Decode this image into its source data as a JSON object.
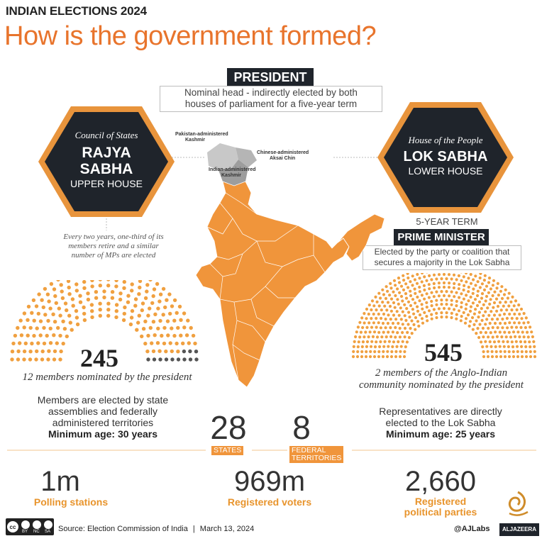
{
  "header": {
    "kicker": "INDIAN ELECTIONS 2024",
    "title": "How is the government formed?"
  },
  "president": {
    "label": "PRESIDENT",
    "description_line1": "Nominal head - indirectly elected by both",
    "description_line2": "houses of parliament for a five-year term"
  },
  "rajya_sabha": {
    "subtitle": "Council of States",
    "name_line1": "RAJYA",
    "name_line2": "SABHA",
    "house": "UPPER HOUSE",
    "note_line1": "Every two years, one-third of its",
    "note_line2": "members retire and a similar",
    "note_line3": "number of MPs are elected",
    "seats": "245",
    "seats_total": 245,
    "nominated_count": 12,
    "nominated_note": "12 members nominated by the president",
    "desc_line1": "Members are elected by state",
    "desc_line2": "assemblies and federally",
    "desc_line3": "administered territories",
    "min_age": "Minimum age: 30 years"
  },
  "lok_sabha": {
    "subtitle": "House of the People",
    "name": "LOK SABHA",
    "house": "LOWER HOUSE",
    "term": "5-YEAR TERM",
    "seats": "545",
    "seats_total": 545,
    "nominated_note_line1": "2 members of the Anglo-Indian",
    "nominated_note_line2": "community nominated by the president",
    "desc_line1": "Representatives are directly",
    "desc_line2": "elected to the Lok Sabha",
    "min_age": "Minimum age: 25 years"
  },
  "prime_minister": {
    "label": "PRIME MINISTER",
    "description_line1": "Elected by the party or coalition that",
    "description_line2": "secures a majority in the Lok Sabha"
  },
  "map": {
    "label_pak_line1": "Pakistan-administered",
    "label_pak_line2": "Kashmir",
    "label_china_line1": "Chinese-administered",
    "label_china_line2": "Aksai Chin",
    "label_india_line1": "Indian-administered",
    "label_india_line2": "Kashmir"
  },
  "counts": {
    "states_num": "28",
    "states_label": "STATES",
    "territories_num": "8",
    "territories_label_line1": "FEDERAL",
    "territories_label_line2": "TERRITORIES"
  },
  "stats": [
    {
      "value": "1m",
      "label": "Polling stations"
    },
    {
      "value": "969m",
      "label": "Registered voters"
    },
    {
      "value": "2,660",
      "label_line1": "Registered",
      "label_line2": "political parties"
    }
  ],
  "footer": {
    "license_line1": "BY",
    "license_line2": "NC",
    "license_line3": "SA",
    "source": "Source: Election Commission of India",
    "separator": "|",
    "date": "March 13, 2024",
    "handle": "@AJLabs",
    "brand": "ALJAZEERA"
  },
  "colors": {
    "accent": "#e8742c",
    "map_fill": "#f0953b",
    "dot_orange": "#f0a040",
    "dot_gray": "#555555",
    "hex_dark": "#1f242b"
  }
}
